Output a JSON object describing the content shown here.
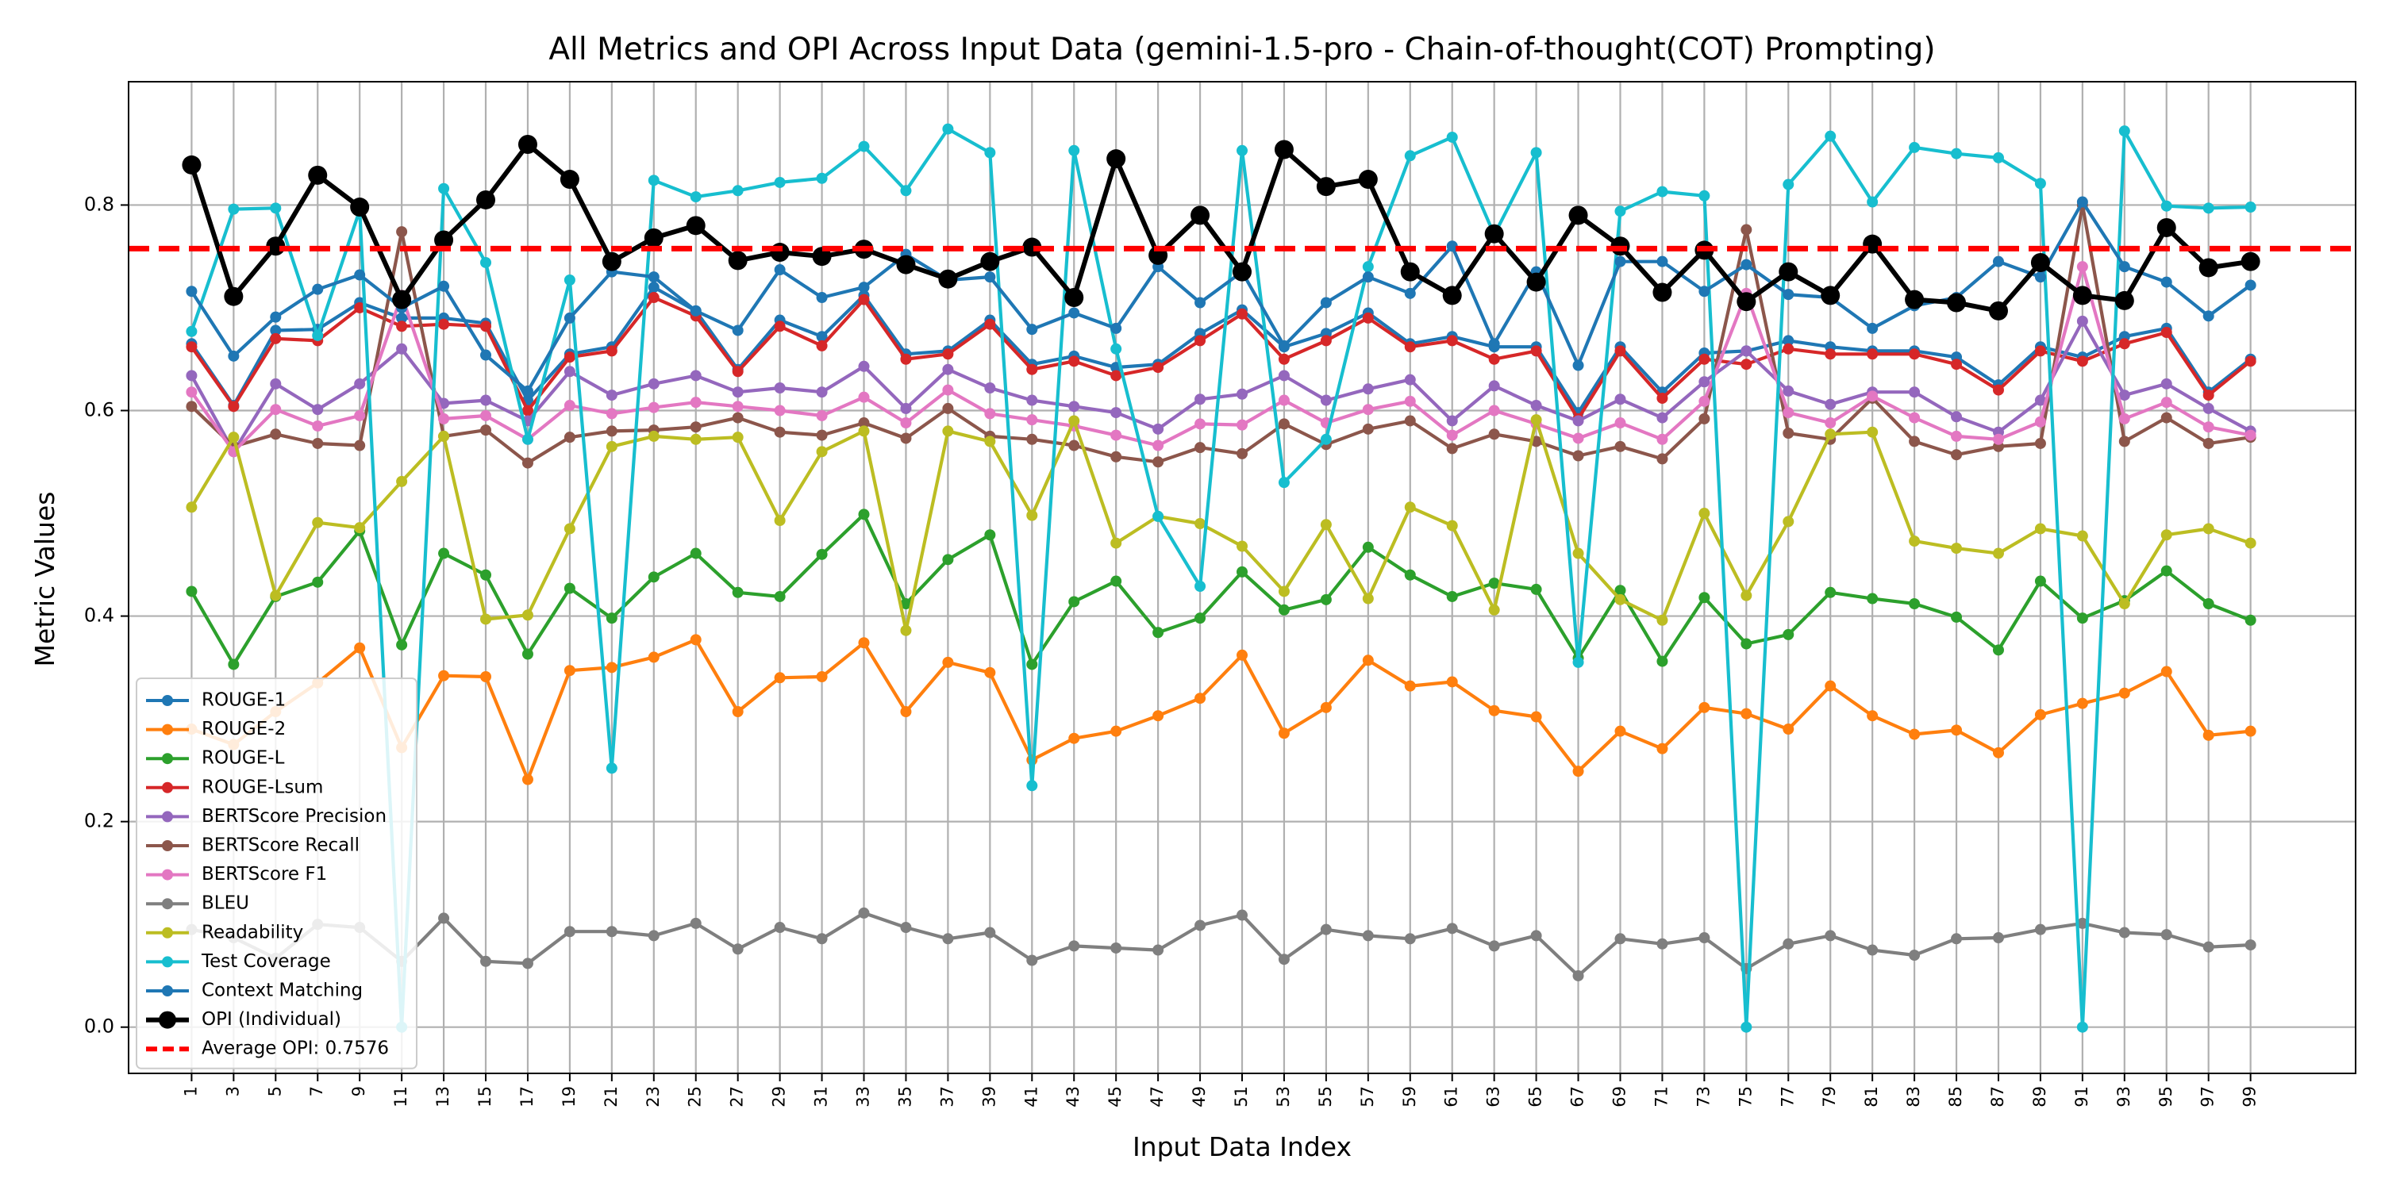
{
  "chart_data": {
    "type": "line",
    "title": "All Metrics and OPI Across Input Data (gemini-1.5-pro - Chain-of-thought(COT) Prompting)",
    "xlabel": "Input Data Index",
    "ylabel": "Metric Values",
    "xlim": [
      -1.5,
      51.5
    ],
    "ylim": [
      -0.045,
      0.92
    ],
    "grid": true,
    "legend_position": "lower-left",
    "x": [
      "1",
      "3",
      "5",
      "7",
      "9",
      "11",
      "13",
      "15",
      "17",
      "19",
      "21",
      "23",
      "25",
      "27",
      "29",
      "31",
      "33",
      "35",
      "37",
      "39",
      "41",
      "43",
      "45",
      "47",
      "49",
      "51",
      "53",
      "55",
      "57",
      "59",
      "61",
      "63",
      "65",
      "67",
      "69",
      "71",
      "73",
      "75",
      "77",
      "79",
      "81",
      "83",
      "85",
      "87",
      "89",
      "91",
      "93",
      "95",
      "97",
      "99"
    ],
    "yticks": [
      "0.0",
      "0.2",
      "0.4",
      "0.6",
      "0.8"
    ],
    "yticks_values": [
      0.0,
      0.2,
      0.4,
      0.6,
      0.8
    ],
    "series": [
      {
        "name": "ROUGE-1",
        "color": "#1f77b4",
        "values": [
          0.665,
          0.605,
          0.678,
          0.679,
          0.705,
          0.69,
          0.69,
          0.685,
          0.61,
          0.655,
          0.662,
          0.72,
          0.697,
          0.64,
          0.688,
          0.672,
          0.712,
          0.655,
          0.658,
          0.688,
          0.645,
          0.653,
          0.642,
          0.645,
          0.675,
          0.698,
          0.662,
          0.675,
          0.695,
          0.665,
          0.672,
          0.662,
          0.662,
          0.598,
          0.662,
          0.618,
          0.656,
          0.658,
          0.668,
          0.662,
          0.658,
          0.658,
          0.652,
          0.625,
          0.662,
          0.652,
          0.672,
          0.68,
          0.618,
          0.65
        ]
      },
      {
        "name": "ROUGE-2",
        "color": "#ff7f0e",
        "values": [
          0.29,
          0.275,
          0.307,
          0.335,
          0.369,
          0.272,
          0.342,
          0.341,
          0.241,
          0.347,
          0.35,
          0.36,
          0.377,
          0.307,
          0.34,
          0.341,
          0.374,
          0.307,
          0.355,
          0.345,
          0.26,
          0.281,
          0.288,
          0.303,
          0.32,
          0.362,
          0.286,
          0.311,
          0.357,
          0.332,
          0.336,
          0.308,
          0.302,
          0.249,
          0.288,
          0.271,
          0.311,
          0.305,
          0.29,
          0.332,
          0.303,
          0.285,
          0.289,
          0.267,
          0.304,
          0.315,
          0.325,
          0.346,
          0.284,
          0.288
        ]
      },
      {
        "name": "ROUGE-L",
        "color": "#2ca02c",
        "values": [
          0.424,
          0.353,
          0.419,
          0.433,
          0.483,
          0.372,
          0.461,
          0.44,
          0.363,
          0.427,
          0.398,
          0.438,
          0.461,
          0.423,
          0.419,
          0.46,
          0.499,
          0.412,
          0.455,
          0.479,
          0.353,
          0.414,
          0.434,
          0.384,
          0.398,
          0.443,
          0.406,
          0.416,
          0.467,
          0.44,
          0.419,
          0.432,
          0.426,
          0.359,
          0.425,
          0.356,
          0.418,
          0.373,
          0.382,
          0.423,
          0.417,
          0.412,
          0.399,
          0.367,
          0.434,
          0.398,
          0.415,
          0.444,
          0.412,
          0.396
        ]
      },
      {
        "name": "ROUGE-Lsum",
        "color": "#d62728",
        "values": [
          0.662,
          0.604,
          0.67,
          0.668,
          0.7,
          0.682,
          0.684,
          0.682,
          0.6,
          0.652,
          0.658,
          0.71,
          0.692,
          0.638,
          0.682,
          0.663,
          0.708,
          0.65,
          0.655,
          0.684,
          0.64,
          0.648,
          0.634,
          0.642,
          0.668,
          0.694,
          0.65,
          0.668,
          0.69,
          0.662,
          0.668,
          0.65,
          0.658,
          0.592,
          0.658,
          0.612,
          0.65,
          0.645,
          0.66,
          0.655,
          0.655,
          0.655,
          0.645,
          0.62,
          0.658,
          0.648,
          0.665,
          0.676,
          0.615,
          0.648
        ]
      },
      {
        "name": "BERTScore Precision",
        "color": "#9467bd",
        "values": [
          0.634,
          0.56,
          0.626,
          0.601,
          0.626,
          0.66,
          0.607,
          0.61,
          0.59,
          0.638,
          0.615,
          0.626,
          0.634,
          0.618,
          0.622,
          0.618,
          0.643,
          0.602,
          0.64,
          0.622,
          0.61,
          0.604,
          0.598,
          0.582,
          0.611,
          0.616,
          0.634,
          0.61,
          0.621,
          0.63,
          0.59,
          0.624,
          0.605,
          0.59,
          0.611,
          0.593,
          0.628,
          0.658,
          0.619,
          0.606,
          0.618,
          0.618,
          0.594,
          0.579,
          0.61,
          0.687,
          0.615,
          0.626,
          0.602,
          0.58
        ]
      },
      {
        "name": "BERTScore Recall",
        "color": "#8c564b",
        "values": [
          0.604,
          0.565,
          0.577,
          0.568,
          0.566,
          0.774,
          0.575,
          0.581,
          0.549,
          0.574,
          0.58,
          0.581,
          0.584,
          0.593,
          0.579,
          0.576,
          0.588,
          0.573,
          0.602,
          0.575,
          0.572,
          0.566,
          0.555,
          0.55,
          0.564,
          0.558,
          0.587,
          0.567,
          0.582,
          0.59,
          0.563,
          0.577,
          0.57,
          0.556,
          0.565,
          0.553,
          0.592,
          0.776,
          0.578,
          0.572,
          0.612,
          0.57,
          0.557,
          0.565,
          0.568,
          0.8,
          0.57,
          0.593,
          0.568,
          0.574
        ]
      },
      {
        "name": "BERTScore F1",
        "color": "#e377c2",
        "values": [
          0.618,
          0.56,
          0.601,
          0.585,
          0.595,
          0.712,
          0.592,
          0.595,
          0.572,
          0.605,
          0.597,
          0.603,
          0.608,
          0.604,
          0.6,
          0.595,
          0.613,
          0.588,
          0.62,
          0.597,
          0.591,
          0.585,
          0.576,
          0.566,
          0.587,
          0.586,
          0.61,
          0.588,
          0.601,
          0.609,
          0.576,
          0.6,
          0.587,
          0.573,
          0.588,
          0.572,
          0.609,
          0.714,
          0.598,
          0.588,
          0.614,
          0.593,
          0.575,
          0.572,
          0.589,
          0.74,
          0.592,
          0.608,
          0.584,
          0.576
        ]
      },
      {
        "name": "BLEU",
        "color": "#7f7f7f",
        "values": [
          0.095,
          0.087,
          0.067,
          0.1,
          0.097,
          0.064,
          0.106,
          0.064,
          0.062,
          0.093,
          0.093,
          0.089,
          0.101,
          0.076,
          0.097,
          0.086,
          0.111,
          0.097,
          0.086,
          0.092,
          0.065,
          0.079,
          0.077,
          0.075,
          0.099,
          0.109,
          0.066,
          0.095,
          0.089,
          0.086,
          0.096,
          0.079,
          0.089,
          0.05,
          0.086,
          0.081,
          0.087,
          0.057,
          0.081,
          0.089,
          0.075,
          0.07,
          0.086,
          0.087,
          0.095,
          0.101,
          0.092,
          0.09,
          0.078,
          0.08
        ]
      },
      {
        "name": "Readability",
        "color": "#bcbd22",
        "values": [
          0.506,
          0.574,
          0.42,
          0.491,
          0.486,
          0.531,
          0.575,
          0.397,
          0.401,
          0.485,
          0.565,
          0.575,
          0.572,
          0.574,
          0.493,
          0.56,
          0.58,
          0.386,
          0.58,
          0.57,
          0.498,
          0.59,
          0.471,
          0.497,
          0.49,
          0.468,
          0.424,
          0.489,
          0.417,
          0.506,
          0.488,
          0.406,
          0.591,
          0.461,
          0.416,
          0.396,
          0.5,
          0.42,
          0.492,
          0.577,
          0.579,
          0.473,
          0.466,
          0.461,
          0.485,
          0.478,
          0.412,
          0.479,
          0.485,
          0.471
        ]
      },
      {
        "name": "Test Coverage",
        "color": "#17becf",
        "values": [
          0.677,
          0.796,
          0.797,
          0.673,
          0.795,
          0.0,
          0.816,
          0.744,
          0.572,
          0.727,
          0.252,
          0.824,
          0.808,
          0.814,
          0.822,
          0.826,
          0.857,
          0.814,
          0.874,
          0.851,
          0.235,
          0.853,
          0.66,
          0.497,
          0.429,
          0.853,
          0.53,
          0.572,
          0.74,
          0.848,
          0.866,
          0.771,
          0.851,
          0.355,
          0.794,
          0.813,
          0.809,
          0.0,
          0.82,
          0.867,
          0.803,
          0.856,
          0.85,
          0.846,
          0.821,
          0.0,
          0.872,
          0.799,
          0.797,
          0.798
        ]
      },
      {
        "name": "Context Matching",
        "color": "#1f77b4",
        "values": [
          0.716,
          0.653,
          0.691,
          0.718,
          0.732,
          0.7,
          0.721,
          0.654,
          0.619,
          0.69,
          0.735,
          0.73,
          0.697,
          0.678,
          0.737,
          0.71,
          0.72,
          0.752,
          0.727,
          0.73,
          0.679,
          0.695,
          0.68,
          0.74,
          0.705,
          0.735,
          0.663,
          0.705,
          0.73,
          0.714,
          0.76,
          0.665,
          0.735,
          0.644,
          0.745,
          0.745,
          0.716,
          0.742,
          0.713,
          0.71,
          0.68,
          0.702,
          0.71,
          0.745,
          0.73,
          0.803,
          0.74,
          0.725,
          0.692,
          0.722
        ]
      },
      {
        "name": "OPI (Individual)",
        "color": "#000000",
        "values": [
          0.839,
          0.711,
          0.76,
          0.829,
          0.798,
          0.708,
          0.766,
          0.805,
          0.859,
          0.825,
          0.745,
          0.768,
          0.78,
          0.746,
          0.754,
          0.75,
          0.757,
          0.742,
          0.728,
          0.745,
          0.759,
          0.71,
          0.845,
          0.751,
          0.79,
          0.735,
          0.854,
          0.818,
          0.825,
          0.735,
          0.712,
          0.772,
          0.725,
          0.79,
          0.76,
          0.715,
          0.756,
          0.706,
          0.735,
          0.712,
          0.762,
          0.708,
          0.705,
          0.697,
          0.744,
          0.712,
          0.707,
          0.778,
          0.739,
          0.745
        ]
      }
    ],
    "average_line": {
      "label": "Average OPI: 0.7576",
      "value": 0.7576,
      "color": "#ff0000"
    }
  }
}
